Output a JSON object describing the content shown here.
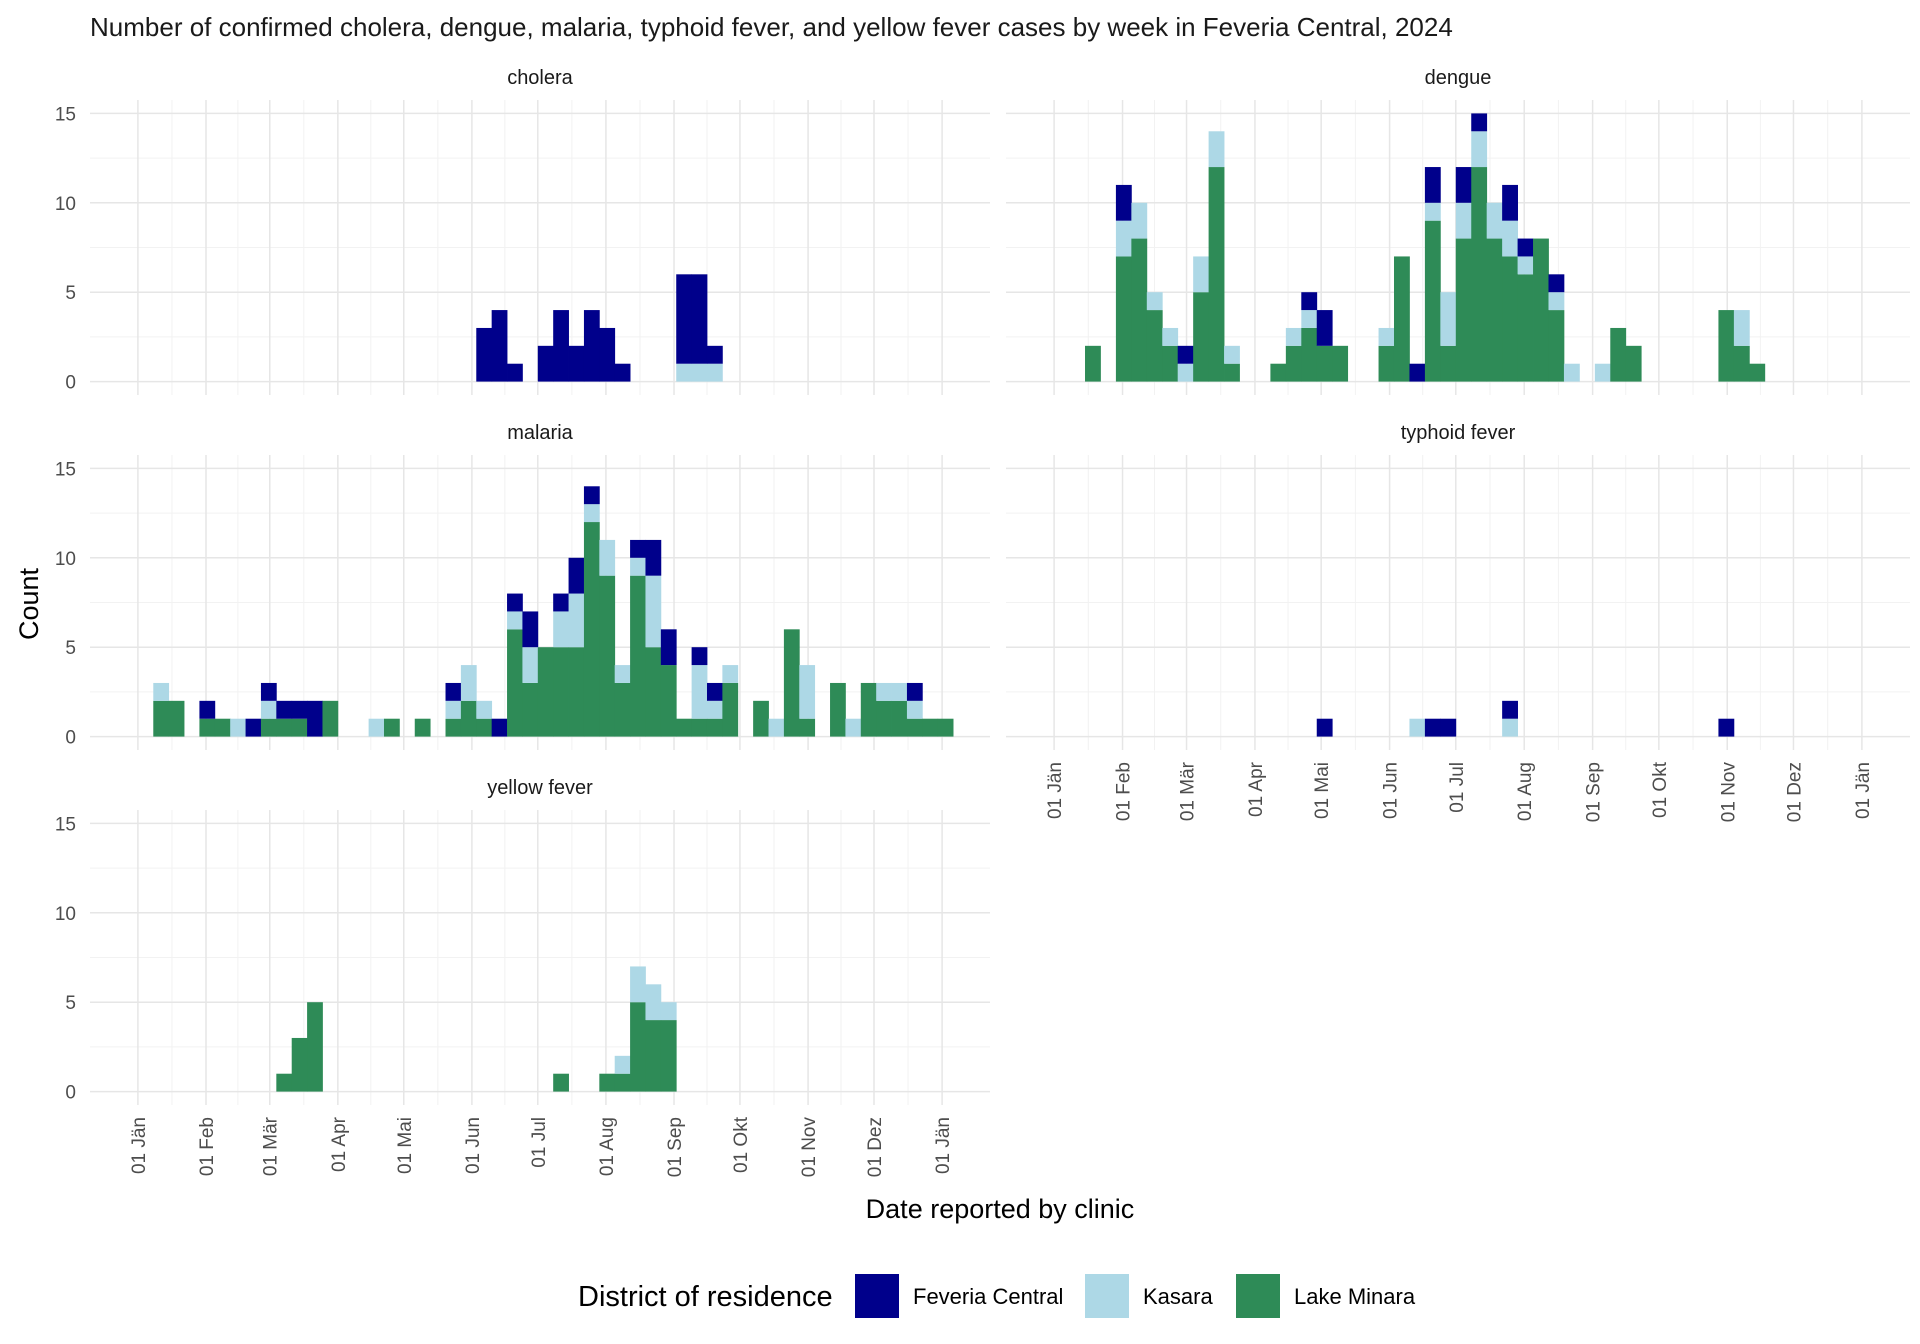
{
  "chart_data": {
    "type": "bar",
    "stacked": true,
    "title": "Number of confirmed cholera, dengue, malaria, typhoid fever, and yellow fever cases by week in Feveria Central, 2024",
    "xlabel": "Date reported by clinic",
    "ylabel": "Count",
    "x_unit": "week of 2024 (ISO week number, Monday start)",
    "ylim": [
      0,
      15
    ],
    "y_ticks": [
      0,
      5,
      10,
      15
    ],
    "x_range": [
      "2024-01-01",
      "2025-01-01"
    ],
    "x_tick_labels": [
      "01 Jän",
      "01 Feb",
      "01 Mär",
      "01 Apr",
      "01 Mai",
      "01 Jun",
      "01 Jul",
      "01 Aug",
      "01 Sep",
      "01 Okt",
      "01 Nov",
      "01 Dez",
      "01 Jän"
    ],
    "grid": true,
    "legend": {
      "title": "District of residence",
      "position": "bottom",
      "entries": [
        "Feveria Central",
        "Kasara",
        "Lake Minara"
      ]
    },
    "series_colors": {
      "Feveria Central": "#00008b",
      "Kasara": "#add8e6",
      "Lake Minara": "#2e8b57"
    },
    "panels": [
      {
        "name": "cholera",
        "weeks": [
          [
            23,
            3,
            0,
            0
          ],
          [
            24,
            4,
            0,
            0
          ],
          [
            25,
            1,
            0,
            0
          ],
          [
            27,
            2,
            0,
            0
          ],
          [
            28,
            4,
            0,
            0
          ],
          [
            29,
            2,
            0,
            0
          ],
          [
            30,
            4,
            0,
            0
          ],
          [
            31,
            3,
            0,
            0
          ],
          [
            32,
            1,
            0,
            0
          ],
          [
            36,
            5,
            1,
            0
          ],
          [
            37,
            5,
            1,
            0
          ],
          [
            38,
            1,
            1,
            0
          ]
        ]
      },
      {
        "name": "dengue",
        "weeks": [
          [
            3,
            0,
            0,
            2
          ],
          [
            5,
            2,
            2,
            7
          ],
          [
            6,
            0,
            2,
            8
          ],
          [
            7,
            0,
            1,
            4
          ],
          [
            8,
            0,
            1,
            2
          ],
          [
            9,
            1,
            1,
            0
          ],
          [
            10,
            0,
            2,
            5
          ],
          [
            11,
            0,
            2,
            12
          ],
          [
            12,
            0,
            1,
            1
          ],
          [
            15,
            0,
            0,
            1
          ],
          [
            16,
            0,
            1,
            2
          ],
          [
            17,
            1,
            1,
            3
          ],
          [
            18,
            2,
            0,
            2
          ],
          [
            19,
            0,
            0,
            2
          ],
          [
            22,
            0,
            1,
            2
          ],
          [
            23,
            0,
            0,
            7
          ],
          [
            24,
            1,
            0,
            0
          ],
          [
            25,
            2,
            1,
            9
          ],
          [
            26,
            0,
            3,
            2
          ],
          [
            27,
            2,
            2,
            8
          ],
          [
            28,
            1,
            2,
            12
          ],
          [
            29,
            0,
            2,
            8
          ],
          [
            30,
            2,
            2,
            7
          ],
          [
            31,
            1,
            1,
            6
          ],
          [
            32,
            0,
            0,
            8
          ],
          [
            33,
            1,
            1,
            4
          ],
          [
            34,
            0,
            1,
            0
          ],
          [
            36,
            0,
            1,
            0
          ],
          [
            37,
            0,
            0,
            3
          ],
          [
            38,
            0,
            0,
            2
          ],
          [
            44,
            0,
            0,
            4
          ],
          [
            45,
            0,
            2,
            2
          ],
          [
            46,
            0,
            0,
            1
          ]
        ]
      },
      {
        "name": "malaria",
        "weeks": [
          [
            2,
            0,
            1,
            2
          ],
          [
            3,
            0,
            0,
            2
          ],
          [
            5,
            1,
            0,
            1
          ],
          [
            6,
            0,
            0,
            1
          ],
          [
            7,
            0,
            1,
            0
          ],
          [
            8,
            1,
            0,
            0
          ],
          [
            9,
            1,
            1,
            1
          ],
          [
            10,
            1,
            0,
            1
          ],
          [
            11,
            1,
            0,
            1
          ],
          [
            12,
            2,
            0,
            0
          ],
          [
            13,
            0,
            0,
            2
          ],
          [
            16,
            0,
            1,
            0
          ],
          [
            17,
            0,
            0,
            1
          ],
          [
            19,
            0,
            0,
            1
          ],
          [
            21,
            1,
            1,
            1
          ],
          [
            22,
            0,
            2,
            2
          ],
          [
            23,
            0,
            1,
            1
          ],
          [
            24,
            1,
            0,
            0
          ],
          [
            25,
            1,
            1,
            6
          ],
          [
            26,
            2,
            2,
            3
          ],
          [
            27,
            0,
            0,
            5
          ],
          [
            28,
            1,
            2,
            5
          ],
          [
            29,
            2,
            3,
            5
          ],
          [
            30,
            1,
            1,
            12
          ],
          [
            31,
            0,
            2,
            9
          ],
          [
            32,
            0,
            1,
            3
          ],
          [
            33,
            1,
            1,
            9
          ],
          [
            34,
            2,
            4,
            5
          ],
          [
            35,
            2,
            0,
            4
          ],
          [
            36,
            0,
            0,
            1
          ],
          [
            37,
            1,
            3,
            1
          ],
          [
            38,
            1,
            1,
            1
          ],
          [
            39,
            0,
            1,
            3
          ],
          [
            41,
            0,
            0,
            2
          ],
          [
            42,
            0,
            1,
            0
          ],
          [
            43,
            0,
            0,
            6
          ],
          [
            44,
            0,
            3,
            1
          ],
          [
            46,
            0,
            0,
            3
          ],
          [
            47,
            0,
            1,
            0
          ],
          [
            48,
            0,
            0,
            3
          ],
          [
            49,
            0,
            1,
            2
          ],
          [
            50,
            0,
            1,
            2
          ],
          [
            51,
            1,
            1,
            1
          ],
          [
            52,
            0,
            0,
            1
          ],
          [
            53,
            0,
            0,
            1
          ]
        ]
      },
      {
        "name": "typhoid fever",
        "weeks": [
          [
            18,
            1,
            0,
            0
          ],
          [
            24,
            0,
            1,
            0
          ],
          [
            25,
            1,
            0,
            0
          ],
          [
            26,
            1,
            0,
            0
          ],
          [
            30,
            1,
            1,
            0
          ],
          [
            44,
            1,
            0,
            0
          ]
        ]
      },
      {
        "name": "yellow fever",
        "weeks": [
          [
            10,
            0,
            0,
            1
          ],
          [
            11,
            0,
            0,
            3
          ],
          [
            12,
            0,
            0,
            5
          ],
          [
            28,
            0,
            0,
            1
          ],
          [
            31,
            0,
            0,
            1
          ],
          [
            32,
            0,
            1,
            1
          ],
          [
            33,
            0,
            2,
            5
          ],
          [
            34,
            0,
            2,
            4
          ],
          [
            35,
            0,
            1,
            4
          ]
        ]
      }
    ]
  }
}
